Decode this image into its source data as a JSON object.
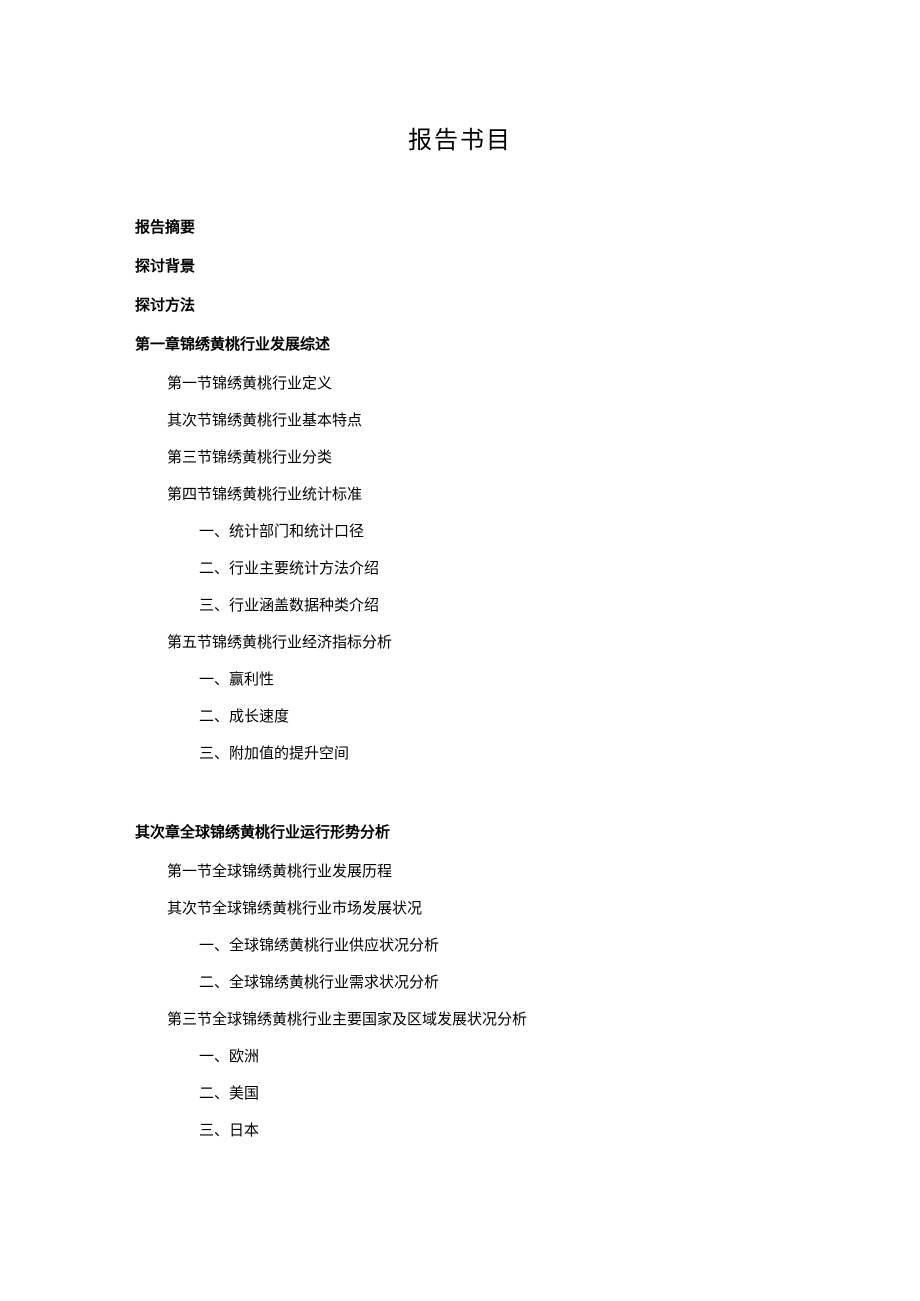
{
  "title": "报告书目",
  "sections": {
    "abstract": "报告摘要",
    "background": "探讨背景",
    "method": "探讨方法"
  },
  "chapter1": {
    "heading": "第一章锦绣黄桃行业发展综述",
    "s1": "第一节锦绣黄桃行业定义",
    "s2": "其次节锦绣黄桃行业基本特点",
    "s3": "第三节锦绣黄桃行业分类",
    "s4": "第四节锦绣黄桃行业统计标准",
    "s4_1": "一、统计部门和统计口径",
    "s4_2": "二、行业主要统计方法介绍",
    "s4_3": "三、行业涵盖数据种类介绍",
    "s5": "第五节锦绣黄桃行业经济指标分析",
    "s5_1": "一、赢利性",
    "s5_2": "二、成长速度",
    "s5_3": "三、附加值的提升空间"
  },
  "chapter2": {
    "heading": "其次章全球锦绣黄桃行业运行形势分析",
    "s1": "第一节全球锦绣黄桃行业发展历程",
    "s2": "其次节全球锦绣黄桃行业市场发展状况",
    "s2_1": "一、全球锦绣黄桃行业供应状况分析",
    "s2_2": "二、全球锦绣黄桃行业需求状况分析",
    "s3": "第三节全球锦绣黄桃行业主要国家及区域发展状况分析",
    "s3_1": "一、欧洲",
    "s3_2": "二、美国",
    "s3_3": "三、日本"
  }
}
